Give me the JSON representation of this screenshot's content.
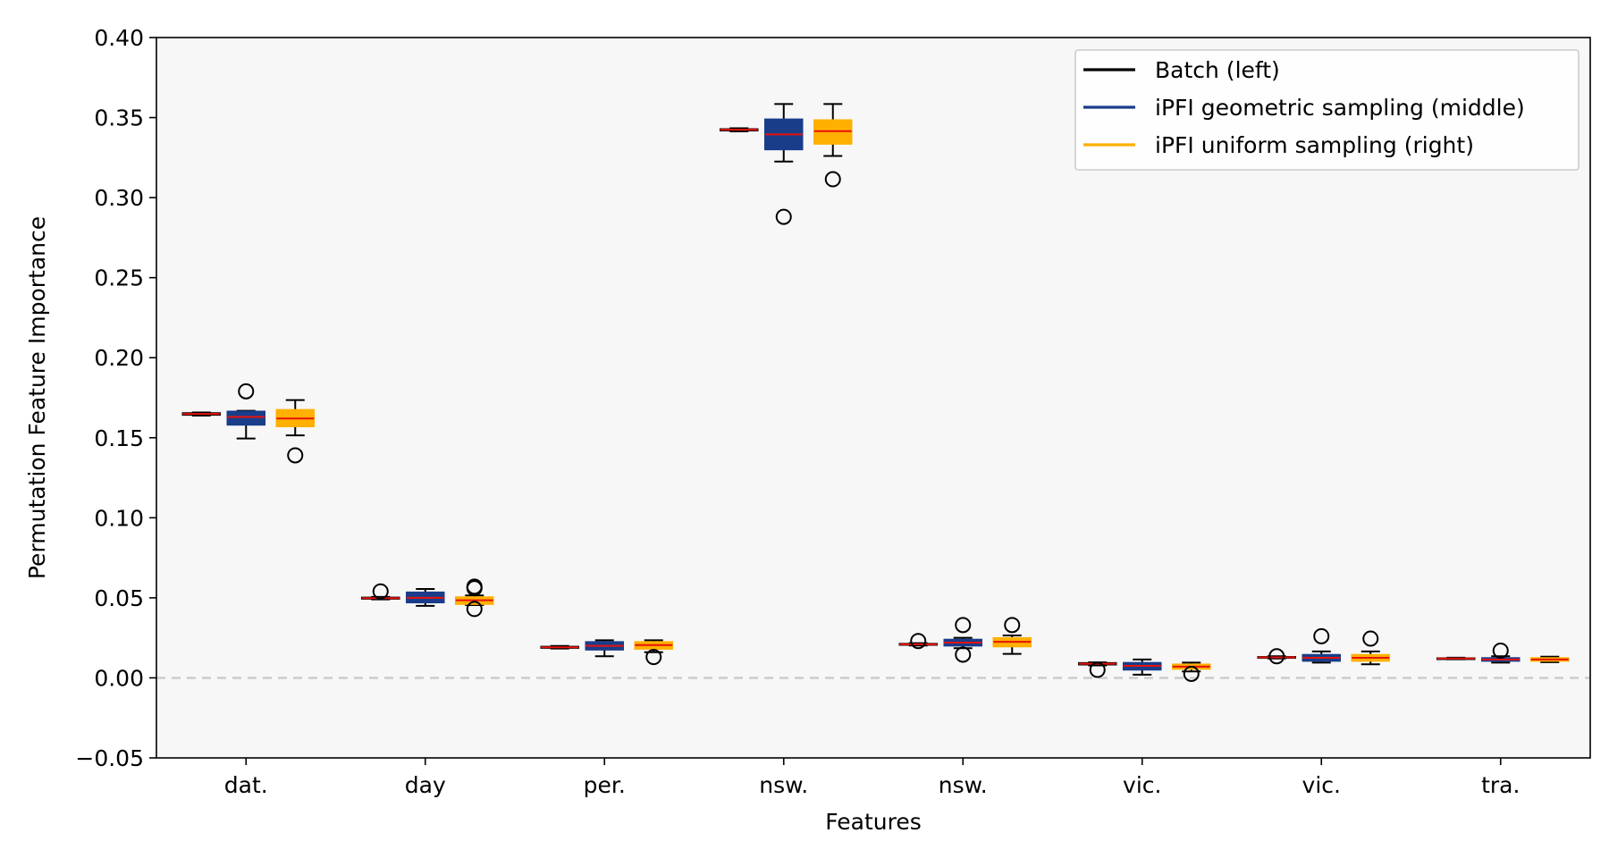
{
  "chart_data": {
    "type": "box",
    "title": "",
    "xlabel": "Features",
    "ylabel": "Permutation Feature Importance",
    "ylim": [
      -0.05,
      0.4
    ],
    "yticks": [
      -0.05,
      0.0,
      0.05,
      0.1,
      0.15,
      0.2,
      0.25,
      0.3,
      0.35,
      0.4
    ],
    "ytick_labels": [
      "−0.05",
      "0.00",
      "0.05",
      "0.10",
      "0.15",
      "0.20",
      "0.25",
      "0.30",
      "0.35",
      "0.40"
    ],
    "categories": [
      "dat.",
      "day",
      "per.",
      "nsw.",
      "nsw.",
      "vic.",
      "vic.",
      "tra."
    ],
    "reference_line": 0.0,
    "reference_line_color": "#cccccc",
    "plot_background": "#f7f7f7",
    "median_color": "#e8120c",
    "legend_position": "top-right",
    "series": [
      {
        "name": "Batch (left)",
        "color": "#000000",
        "fill": "#f7f7f7",
        "boxes": [
          {
            "q1": 0.1642,
            "median": 0.1649,
            "q3": 0.1655,
            "whislo": 0.1638,
            "whishi": 0.1658,
            "fliers": []
          },
          {
            "q1": 0.0493,
            "median": 0.0498,
            "q3": 0.0503,
            "whislo": 0.049,
            "whishi": 0.0506,
            "fliers": [
              0.054
            ]
          },
          {
            "q1": 0.0186,
            "median": 0.0191,
            "q3": 0.0196,
            "whislo": 0.0183,
            "whishi": 0.0199,
            "fliers": []
          },
          {
            "q1": 0.3418,
            "median": 0.3424,
            "q3": 0.3429,
            "whislo": 0.3414,
            "whishi": 0.3433,
            "fliers": []
          },
          {
            "q1": 0.0205,
            "median": 0.021,
            "q3": 0.0214,
            "whislo": 0.0202,
            "whishi": 0.0217,
            "fliers": [
              0.023
            ]
          },
          {
            "q1": 0.0082,
            "median": 0.0088,
            "q3": 0.0094,
            "whislo": 0.0078,
            "whishi": 0.0097,
            "fliers": [
              0.005
            ]
          },
          {
            "q1": 0.0124,
            "median": 0.0128,
            "q3": 0.0132,
            "whislo": 0.0121,
            "whishi": 0.0135,
            "fliers": [
              0.0135
            ]
          },
          {
            "q1": 0.0118,
            "median": 0.0121,
            "q3": 0.0124,
            "whislo": 0.0116,
            "whishi": 0.0126,
            "fliers": []
          }
        ]
      },
      {
        "name": "iPFI geometric sampling (middle)",
        "color": "#1a3d8a",
        "fill": "#1a3d8a",
        "boxes": [
          {
            "q1": 0.158,
            "median": 0.163,
            "q3": 0.1665,
            "whislo": 0.1495,
            "whishi": 0.1668,
            "fliers": [
              0.179
            ]
          },
          {
            "q1": 0.047,
            "median": 0.05,
            "q3": 0.0535,
            "whislo": 0.045,
            "whishi": 0.0555,
            "fliers": []
          },
          {
            "q1": 0.0175,
            "median": 0.02,
            "q3": 0.0225,
            "whislo": 0.0135,
            "whishi": 0.0235,
            "fliers": []
          },
          {
            "q1": 0.33,
            "median": 0.3395,
            "q3": 0.349,
            "whislo": 0.3225,
            "whishi": 0.3585,
            "fliers": [
              0.288
            ]
          },
          {
            "q1": 0.02,
            "median": 0.022,
            "q3": 0.024,
            "whislo": 0.0185,
            "whishi": 0.025,
            "fliers": [
              0.033,
              0.0145
            ]
          },
          {
            "q1": 0.005,
            "median": 0.0075,
            "q3": 0.0095,
            "whislo": 0.002,
            "whishi": 0.0115,
            "fliers": []
          },
          {
            "q1": 0.0105,
            "median": 0.0125,
            "q3": 0.0145,
            "whislo": 0.0095,
            "whishi": 0.0165,
            "fliers": [
              0.026
            ]
          },
          {
            "q1": 0.0105,
            "median": 0.0115,
            "q3": 0.0125,
            "whislo": 0.0095,
            "whishi": 0.0135,
            "fliers": [
              0.017
            ]
          }
        ]
      },
      {
        "name": "iPFI uniform sampling (right)",
        "color": "#ffb000",
        "fill": "#ffb000",
        "boxes": [
          {
            "q1": 0.157,
            "median": 0.162,
            "q3": 0.1675,
            "whislo": 0.1515,
            "whishi": 0.1735,
            "fliers": [
              0.139
            ]
          },
          {
            "q1": 0.046,
            "median": 0.0485,
            "q3": 0.0505,
            "whislo": 0.0455,
            "whishi": 0.0515,
            "fliers": [
              0.057,
              0.056,
              0.043
            ]
          },
          {
            "q1": 0.018,
            "median": 0.0205,
            "q3": 0.0225,
            "whislo": 0.016,
            "whishi": 0.0235,
            "fliers": [
              0.013
            ]
          },
          {
            "q1": 0.3335,
            "median": 0.3415,
            "q3": 0.3485,
            "whislo": 0.326,
            "whishi": 0.3585,
            "fliers": [
              0.3115
            ]
          },
          {
            "q1": 0.0195,
            "median": 0.0225,
            "q3": 0.025,
            "whislo": 0.015,
            "whishi": 0.0265,
            "fliers": [
              0.033
            ]
          },
          {
            "q1": 0.0055,
            "median": 0.007,
            "q3": 0.0085,
            "whislo": 0.004,
            "whishi": 0.0095,
            "fliers": [
              0.0025
            ]
          },
          {
            "q1": 0.0105,
            "median": 0.0125,
            "q3": 0.0145,
            "whislo": 0.0085,
            "whishi": 0.0165,
            "fliers": [
              0.0245
            ]
          },
          {
            "q1": 0.0105,
            "median": 0.0115,
            "q3": 0.0125,
            "whislo": 0.0098,
            "whishi": 0.0132,
            "fliers": []
          }
        ]
      }
    ]
  }
}
